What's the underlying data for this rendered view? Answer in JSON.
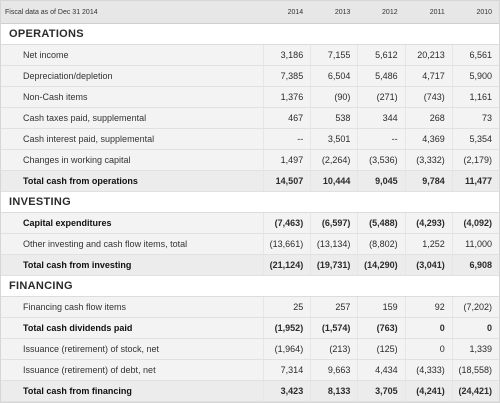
{
  "header": {
    "label": "Fiscal data as of Dec 31 2014",
    "years": [
      "2014",
      "2013",
      "2012",
      "2011",
      "2010"
    ]
  },
  "sections": [
    {
      "title": "OPERATIONS",
      "rows": [
        {
          "label": "Net income",
          "values": [
            "3,186",
            "7,155",
            "5,612",
            "20,213",
            "6,561"
          ],
          "style": "normal"
        },
        {
          "label": "Depreciation/depletion",
          "values": [
            "7,385",
            "6,504",
            "5,486",
            "4,717",
            "5,900"
          ],
          "style": "normal"
        },
        {
          "label": "Non-Cash items",
          "values": [
            "1,376",
            "(90)",
            "(271)",
            "(743)",
            "1,161"
          ],
          "style": "normal"
        },
        {
          "label": "Cash taxes paid, supplemental",
          "values": [
            "467",
            "538",
            "344",
            "268",
            "73"
          ],
          "style": "normal"
        },
        {
          "label": "Cash interest paid, supplemental",
          "values": [
            "--",
            "3,501",
            "--",
            "4,369",
            "5,354"
          ],
          "style": "normal"
        },
        {
          "label": "Changes in working capital",
          "values": [
            "1,497",
            "(2,264)",
            "(3,536)",
            "(3,332)",
            "(2,179)"
          ],
          "style": "normal"
        },
        {
          "label": "Total cash from operations",
          "values": [
            "14,507",
            "10,444",
            "9,045",
            "9,784",
            "11,477"
          ],
          "style": "total"
        }
      ]
    },
    {
      "title": "INVESTING",
      "rows": [
        {
          "label": "Capital expenditures",
          "values": [
            "(7,463)",
            "(6,597)",
            "(5,488)",
            "(4,293)",
            "(4,092)"
          ],
          "style": "bold-label"
        },
        {
          "label": "Other investing and cash flow items, total",
          "values": [
            "(13,661)",
            "(13,134)",
            "(8,802)",
            "1,252",
            "11,000"
          ],
          "style": "normal"
        },
        {
          "label": "Total cash from investing",
          "values": [
            "(21,124)",
            "(19,731)",
            "(14,290)",
            "(3,041)",
            "6,908"
          ],
          "style": "total"
        }
      ]
    },
    {
      "title": "FINANCING",
      "rows": [
        {
          "label": "Financing cash flow items",
          "values": [
            "25",
            "257",
            "159",
            "92",
            "(7,202)"
          ],
          "style": "normal"
        },
        {
          "label": "Total cash dividends paid",
          "values": [
            "(1,952)",
            "(1,574)",
            "(763)",
            "0",
            "0"
          ],
          "style": "bold-label"
        },
        {
          "label": "Issuance (retirement) of stock, net",
          "values": [
            "(1,964)",
            "(213)",
            "(125)",
            "0",
            "1,339"
          ],
          "style": "normal"
        },
        {
          "label": "Issuance (retirement) of debt, net",
          "values": [
            "7,314",
            "9,663",
            "4,434",
            "(4,333)",
            "(18,558)"
          ],
          "style": "normal"
        },
        {
          "label": "Total cash from financing",
          "values": [
            "3,423",
            "8,133",
            "3,705",
            "(4,241)",
            "(24,421)"
          ],
          "style": "total"
        }
      ]
    }
  ]
}
